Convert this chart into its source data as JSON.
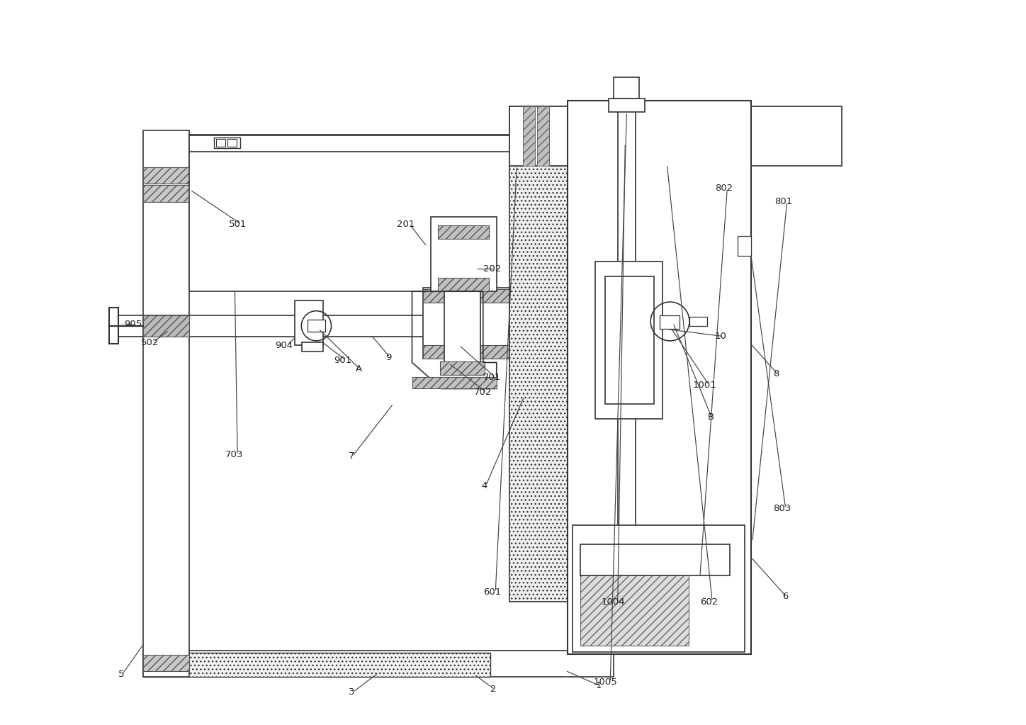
{
  "bg_color": "#ffffff",
  "lc": "#333333",
  "fig_width": 14.48,
  "fig_height": 10.23,
  "dpi": 100
}
